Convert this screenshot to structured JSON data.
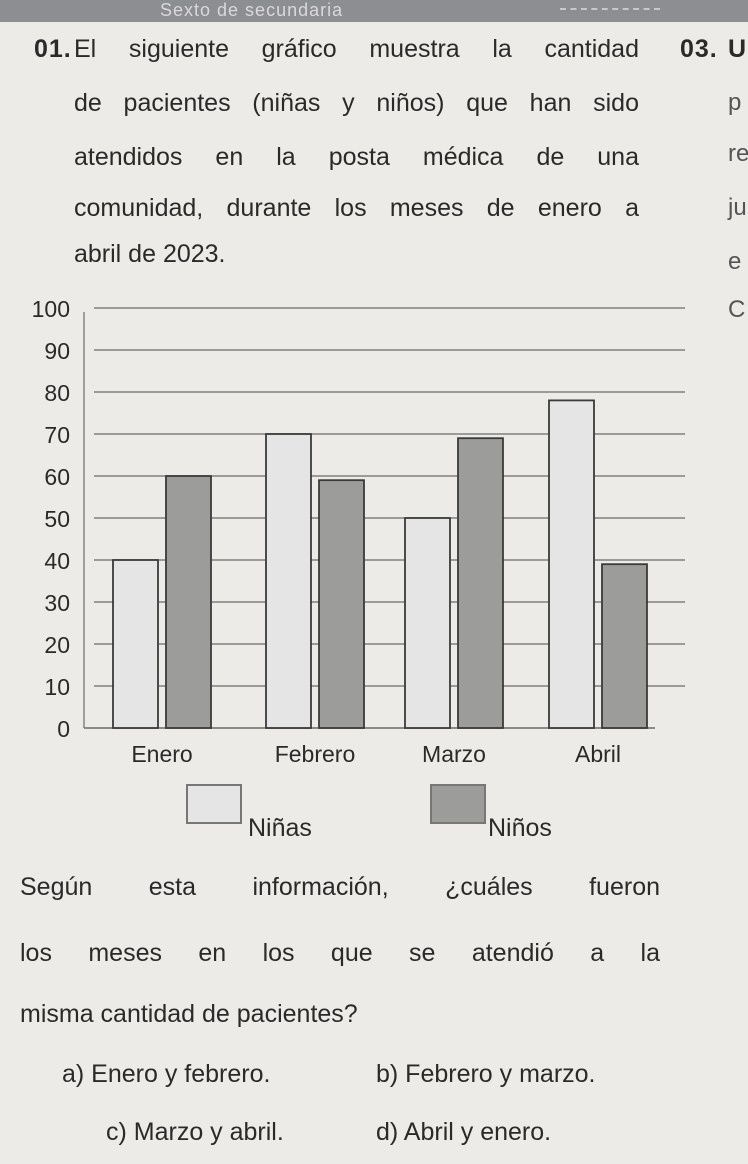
{
  "header": {
    "text": "Sexto de secundaria"
  },
  "question1": {
    "number": "01.",
    "lines": [
      "El siguiente gráfico muestra la cantidad",
      "de pacientes (niñas y niños) que han sido",
      "atendidos en la posta médica de una",
      "comunidad, durante los meses de enero a",
      "abril de 2023."
    ]
  },
  "question3": {
    "number": "03.",
    "fragments": [
      "U",
      "p",
      "re",
      "ju",
      "e",
      "C"
    ]
  },
  "colors": {
    "ninas": "#e5e5e5",
    "ninos": "#9c9d9b",
    "bar_stroke": "#3a3a3a",
    "grid": "#6b6b6b"
  },
  "chart_data": {
    "type": "bar",
    "categories": [
      "Enero",
      "Febrero",
      "Marzo",
      "Abril"
    ],
    "series": [
      {
        "name": "Niñas",
        "values": [
          40,
          70,
          50,
          78
        ]
      },
      {
        "name": "Niños",
        "values": [
          60,
          59,
          69,
          39
        ]
      }
    ],
    "yticks": [
      0,
      10,
      20,
      30,
      40,
      50,
      60,
      70,
      80,
      90,
      100
    ],
    "ylim": [
      0,
      100
    ],
    "grid": true,
    "legend_position": "bottom"
  },
  "legend": {
    "ninas": "Niñas",
    "ninos": "Niños"
  },
  "prompt_lines": [
    "Según esta información, ¿cuáles fueron",
    "los meses en los que se atendió a la",
    "misma cantidad de pacientes?"
  ],
  "options": {
    "a": "a) Enero y febrero.",
    "b": "b) Febrero y marzo.",
    "c": "c) Marzo y abril.",
    "d": "d) Abril y enero."
  }
}
